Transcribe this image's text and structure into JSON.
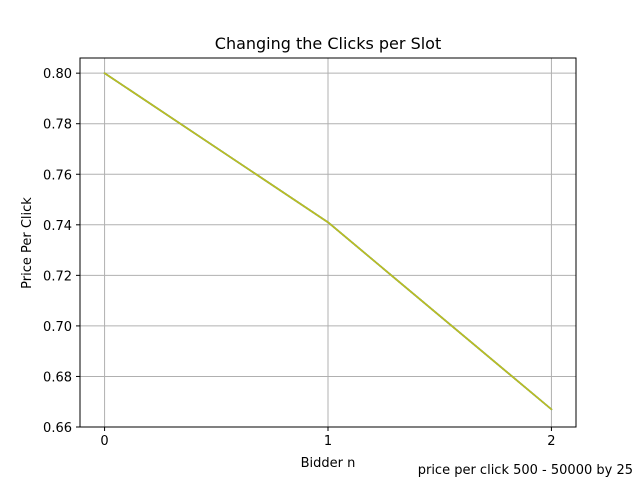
{
  "chart_data": {
    "type": "line",
    "title": "Changing the Clicks per Slot",
    "xlabel": "Bidder n",
    "ylabel": "Price Per Click",
    "x": [
      0,
      1,
      2
    ],
    "xticks": [
      "0",
      "1",
      "2"
    ],
    "yticks": [
      "0.66",
      "0.68",
      "0.70",
      "0.72",
      "0.74",
      "0.76",
      "0.78",
      "0.80"
    ],
    "xlim": [
      -0.11,
      2.11
    ],
    "ylim": [
      0.66,
      0.806
    ],
    "grid": true,
    "series": [
      {
        "values": [
          0.8,
          0.741,
          0.667
        ],
        "color": "#17becf"
      },
      {
        "values": [
          0.8,
          0.741,
          0.667
        ],
        "color": "#2ca02c"
      },
      {
        "values": [
          0.8,
          0.741,
          0.667
        ],
        "color": "#7f7f7f"
      },
      {
        "values": [
          0.8,
          0.741,
          0.667
        ],
        "color": "#bcbd22"
      }
    ],
    "footnote": "price per click 500 - 50000 by 25"
  }
}
